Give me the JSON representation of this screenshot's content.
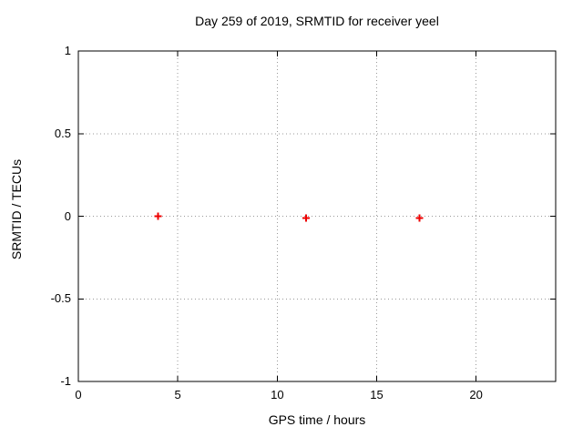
{
  "chart_data": {
    "type": "scatter",
    "title": "Day 259 of 2019, SRMTID for receiver yeel",
    "xlabel": "GPS time / hours",
    "ylabel": "SRMTID / TECUs",
    "xlim": [
      0,
      24
    ],
    "ylim": [
      -1,
      1
    ],
    "xticks": {
      "values": [
        0,
        5,
        10,
        15,
        20
      ],
      "labels": [
        "0",
        "5",
        "10",
        "15",
        "20"
      ]
    },
    "yticks": {
      "values": [
        -1,
        -0.5,
        0,
        0.5,
        1
      ],
      "labels": [
        "-1",
        "-0.5",
        "0",
        "0.5",
        "1"
      ]
    },
    "grid": true,
    "legend": "none",
    "series": [
      {
        "name": "SRMTID",
        "marker": "plus",
        "color": "#ee0000",
        "points": [
          {
            "x": 4.0,
            "y": 0.0
          },
          {
            "x": 11.45,
            "y": -0.01
          },
          {
            "x": 17.15,
            "y": -0.01
          }
        ]
      }
    ],
    "colors": {
      "background": "#ffffff",
      "border": "#000000",
      "grid": "#9a9a9a",
      "text": "#000000",
      "marker": "#ee0000"
    }
  }
}
